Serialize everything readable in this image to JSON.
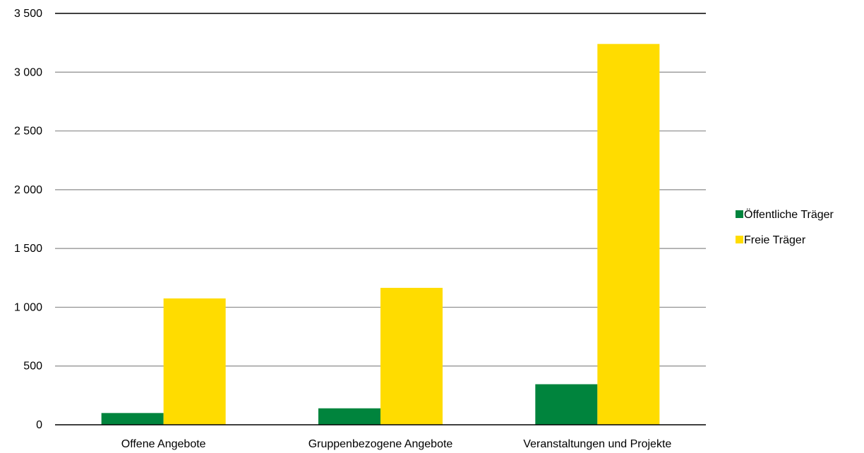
{
  "chart_data": {
    "type": "bar",
    "title": "",
    "xlabel": "",
    "ylabel": "",
    "categories": [
      "Offene Angebote",
      "Gruppenbezogene Angebote",
      "Veranstaltungen und Projekte"
    ],
    "series": [
      {
        "name": "Öffentliche Träger",
        "color": "#00843D",
        "values": [
          100,
          140,
          345
        ]
      },
      {
        "name": "Freie Träger",
        "color": "#FFDC00",
        "values": [
          1075,
          1165,
          3240
        ]
      }
    ],
    "ylim": [
      0,
      3500
    ],
    "yticks": [
      0,
      500,
      1000,
      1500,
      2000,
      2500,
      3000,
      3500
    ],
    "ytick_labels": [
      "0",
      "500",
      "1 000",
      "1 500",
      "2 000",
      "2 500",
      "3 000",
      "3 500"
    ],
    "grid": true,
    "legend_position": "right"
  }
}
